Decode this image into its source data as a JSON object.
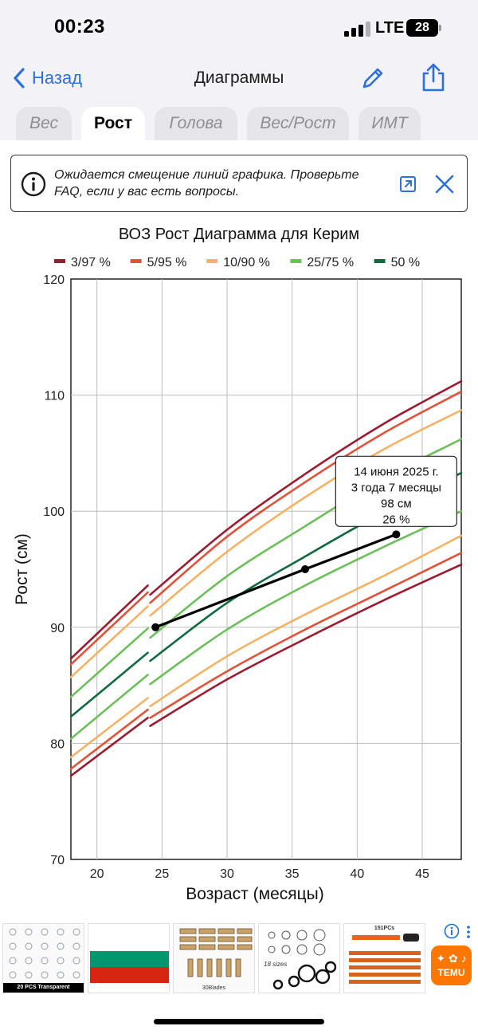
{
  "status_bar": {
    "time": "00:23",
    "network": "LTE",
    "battery": "28"
  },
  "nav": {
    "back_label": "Назад",
    "title": "Диаграммы"
  },
  "tabs": [
    {
      "label": "Вес",
      "active": false
    },
    {
      "label": "Рост",
      "active": true
    },
    {
      "label": "Голова",
      "active": false
    },
    {
      "label": "Вес/Рост",
      "active": false
    },
    {
      "label": "ИМТ",
      "active": false
    }
  ],
  "banner": {
    "text": "Ожидается смещение линий графика. Проверьте FAQ, если у вас есть вопросы."
  },
  "chart_data": {
    "type": "line",
    "title": "ВОЗ Рост Диаграмма для Керим",
    "xlabel": "Возраст (месяцы)",
    "ylabel": "Рост (см)",
    "xlim": [
      18,
      48
    ],
    "ylim": [
      70,
      120
    ],
    "x_ticks": [
      20,
      25,
      30,
      35,
      40,
      45
    ],
    "y_ticks": [
      70,
      80,
      90,
      100,
      110,
      120
    ],
    "grid": true,
    "legend_position": "top",
    "legend": [
      {
        "label": "3/97 %",
        "color": "#9b1b30"
      },
      {
        "label": "5/95 %",
        "color": "#e0533a"
      },
      {
        "label": "10/90 %",
        "color": "#f4b266"
      },
      {
        "label": "25/75 %",
        "color": "#6cbf5a"
      },
      {
        "label": "50 %",
        "color": "#0f6b3d"
      }
    ],
    "percentile_curves": [
      {
        "group": "3/97 %",
        "p": 97,
        "x": [
          18,
          24,
          24,
          30,
          36,
          42,
          48
        ],
        "y": [
          87.3,
          93.6,
          92.8,
          98.4,
          103.2,
          107.5,
          111.2
        ]
      },
      {
        "group": "5/95 %",
        "p": 95,
        "x": [
          18,
          24,
          24,
          30,
          36,
          42,
          48
        ],
        "y": [
          86.8,
          93.0,
          92.1,
          97.8,
          102.5,
          106.7,
          110.3
        ]
      },
      {
        "group": "10/90 %",
        "p": 90,
        "x": [
          18,
          24,
          24,
          30,
          36,
          42,
          48
        ],
        "y": [
          85.7,
          91.8,
          91.0,
          96.5,
          101.2,
          105.3,
          108.7
        ]
      },
      {
        "group": "25/75 %",
        "p": 75,
        "x": [
          18,
          24,
          24,
          30,
          36,
          42,
          48
        ],
        "y": [
          84.0,
          89.9,
          89.1,
          94.4,
          98.7,
          102.8,
          106.2
        ]
      },
      {
        "group": "50 %",
        "p": 50,
        "x": [
          18,
          24,
          24,
          30,
          36,
          42,
          48
        ],
        "y": [
          82.3,
          87.8,
          87.1,
          92.1,
          96.1,
          99.9,
          103.3
        ]
      },
      {
        "group": "25/75 %",
        "p": 25,
        "x": [
          18,
          24,
          24,
          30,
          36,
          42,
          48
        ],
        "y": [
          80.4,
          85.9,
          85.1,
          89.8,
          93.6,
          96.9,
          100.0
        ]
      },
      {
        "group": "10/90 %",
        "p": 10,
        "x": [
          18,
          24,
          24,
          30,
          36,
          42,
          48
        ],
        "y": [
          78.8,
          83.9,
          83.2,
          87.5,
          91.1,
          94.4,
          97.9
        ]
      },
      {
        "group": "5/95 %",
        "p": 5,
        "x": [
          18,
          24,
          24,
          30,
          36,
          42,
          48
        ],
        "y": [
          77.8,
          82.9,
          82.2,
          86.2,
          89.8,
          93.1,
          96.4
        ]
      },
      {
        "group": "3/97 %",
        "p": 3,
        "x": [
          18,
          24,
          24,
          30,
          36,
          42,
          48
        ],
        "y": [
          77.2,
          82.2,
          81.5,
          85.5,
          89.0,
          92.3,
          95.4
        ]
      }
    ],
    "child_series": {
      "x": [
        24.5,
        36,
        43
      ],
      "y": [
        90,
        95,
        98
      ]
    },
    "tooltip": {
      "date": "14 июня 2025 г.",
      "age": "3 года 7 месяцы",
      "value": "98 см",
      "percentile": "26 %"
    }
  },
  "ads": [
    {
      "caption": "20 PCS Transparent"
    },
    {
      "caption": ""
    },
    {
      "caption": "30Blades"
    },
    {
      "caption": "18 sizes"
    },
    {
      "caption": "151PCs"
    }
  ],
  "temu_label": "TEMU"
}
